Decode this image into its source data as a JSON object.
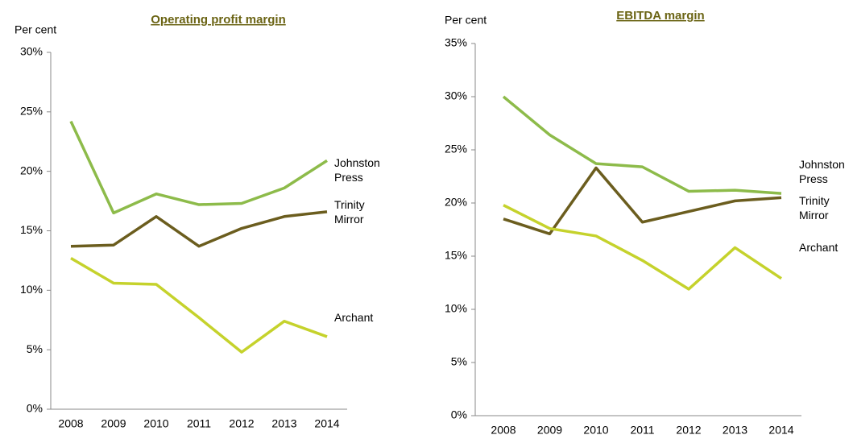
{
  "chart_data": [
    {
      "type": "line",
      "title": "Operating profit margin",
      "y_label": "Per cent",
      "categories": [
        "2008",
        "2009",
        "2010",
        "2011",
        "2012",
        "2013",
        "2014"
      ],
      "ylim": [
        0,
        30
      ],
      "yticks": [
        {
          "value": 0,
          "label": "0%"
        },
        {
          "value": 5,
          "label": "5%"
        },
        {
          "value": 10,
          "label": "10%"
        },
        {
          "value": 15,
          "label": "15%"
        },
        {
          "value": 20,
          "label": "20%"
        },
        {
          "value": 25,
          "label": "25%"
        },
        {
          "value": 30,
          "label": "30%"
        }
      ],
      "series": [
        {
          "name": "Johnston Press",
          "color": "#8dbb4a",
          "values": [
            24.2,
            16.5,
            18.1,
            17.2,
            17.3,
            18.6,
            20.9
          ]
        },
        {
          "name": "Trinity Mirror",
          "color": "#6b5d1e",
          "values": [
            13.7,
            13.8,
            16.2,
            13.7,
            15.2,
            16.2,
            16.6
          ]
        },
        {
          "name": "Archant",
          "color": "#c5d22c",
          "values": [
            12.7,
            10.6,
            10.5,
            7.7,
            4.8,
            7.4,
            6.1
          ]
        }
      ]
    },
    {
      "type": "line",
      "title": "EBITDA margin",
      "y_label": "Per cent",
      "categories": [
        "2008",
        "2009",
        "2010",
        "2011",
        "2012",
        "2013",
        "2014"
      ],
      "ylim": [
        0,
        35
      ],
      "yticks": [
        {
          "value": 0,
          "label": "0%"
        },
        {
          "value": 5,
          "label": "5%"
        },
        {
          "value": 10,
          "label": "10%"
        },
        {
          "value": 15,
          "label": "15%"
        },
        {
          "value": 20,
          "label": "20%"
        },
        {
          "value": 25,
          "label": "25%"
        },
        {
          "value": 30,
          "label": "30%"
        },
        {
          "value": 35,
          "label": "35%"
        }
      ],
      "series": [
        {
          "name": "Johnston Press",
          "color": "#8dbb4a",
          "values": [
            30.0,
            26.4,
            23.7,
            23.4,
            21.1,
            21.2,
            20.9
          ]
        },
        {
          "name": "Trinity Mirror",
          "color": "#6b5d1e",
          "values": [
            18.5,
            17.1,
            23.3,
            18.2,
            19.2,
            20.2,
            20.5
          ]
        },
        {
          "name": "Archant",
          "color": "#c5d22c",
          "values": [
            19.8,
            17.6,
            16.9,
            14.6,
            11.9,
            15.8,
            12.9
          ]
        }
      ]
    }
  ]
}
